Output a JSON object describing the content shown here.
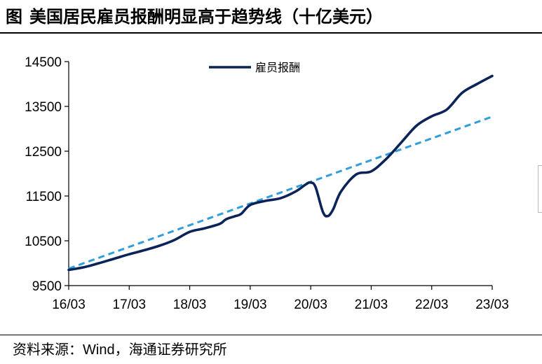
{
  "title": {
    "prefix": "图",
    "text": "美国居民雇员报酬明显高于趋势线（十亿美元）"
  },
  "source": {
    "label": "资料来源：",
    "text": "Wind，海通证券研究所"
  },
  "colors": {
    "series": "#0b2358",
    "trend": "#2e9fdc",
    "axis": "#000000"
  },
  "chart_data": {
    "type": "line",
    "title": "美国居民雇员报酬明显高于趋势线（十亿美元）",
    "xlabel": "",
    "ylabel": "",
    "ylim": [
      9500,
      14500
    ],
    "yticks": [
      9500,
      10500,
      11500,
      12500,
      13500,
      14500
    ],
    "xlim": [
      2016.0,
      2023.0
    ],
    "xticks": [
      2016.0,
      2017.0,
      2018.0,
      2019.0,
      2020.0,
      2021.0,
      2022.0,
      2023.0
    ],
    "xtick_labels": [
      "16/03",
      "17/03",
      "18/03",
      "19/03",
      "20/03",
      "21/03",
      "22/03",
      "23/03"
    ],
    "legend": {
      "position": "top-center",
      "entries": [
        "雇员报酬"
      ]
    },
    "grid": false,
    "series": [
      {
        "name": "雇员报酬",
        "style": "solid",
        "points": [
          [
            2016.0,
            9850
          ],
          [
            2016.25,
            9910
          ],
          [
            2016.5,
            10000
          ],
          [
            2016.75,
            10100
          ],
          [
            2017.0,
            10200
          ],
          [
            2017.25,
            10290
          ],
          [
            2017.5,
            10390
          ],
          [
            2017.75,
            10520
          ],
          [
            2018.0,
            10700
          ],
          [
            2018.25,
            10780
          ],
          [
            2018.5,
            10880
          ],
          [
            2018.6,
            10980
          ],
          [
            2018.75,
            11050
          ],
          [
            2018.85,
            11100
          ],
          [
            2019.0,
            11300
          ],
          [
            2019.25,
            11390
          ],
          [
            2019.5,
            11450
          ],
          [
            2019.75,
            11600
          ],
          [
            2019.92,
            11760
          ],
          [
            2020.0,
            11800
          ],
          [
            2020.08,
            11700
          ],
          [
            2020.2,
            11150
          ],
          [
            2020.28,
            11050
          ],
          [
            2020.37,
            11200
          ],
          [
            2020.5,
            11600
          ],
          [
            2020.75,
            11980
          ],
          [
            2021.0,
            12050
          ],
          [
            2021.25,
            12330
          ],
          [
            2021.5,
            12700
          ],
          [
            2021.75,
            13070
          ],
          [
            2022.0,
            13280
          ],
          [
            2022.25,
            13430
          ],
          [
            2022.5,
            13800
          ],
          [
            2022.75,
            14000
          ],
          [
            2023.0,
            14180
          ]
        ]
      },
      {
        "name": "趋势线",
        "style": "dashed",
        "points": [
          [
            2016.0,
            9880
          ],
          [
            2023.0,
            13270
          ]
        ]
      }
    ]
  }
}
